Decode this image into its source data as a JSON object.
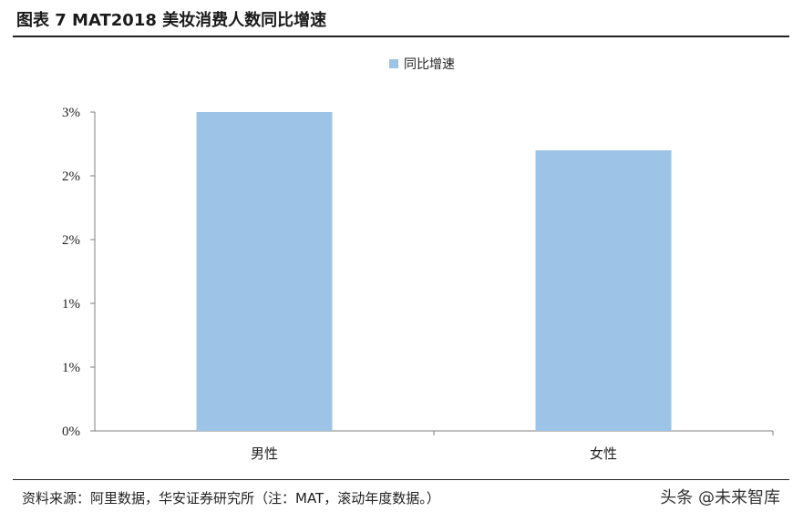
{
  "figure_title": "图表 7 MAT2018 美妆消费人数同比增速",
  "source_note": "资料来源：阿里数据，华安证券研究所（注：MAT，滚动年度数据。）",
  "watermark": "头条 @未来智库",
  "colors": {
    "bar": "#9dc3e6",
    "axis": "#7f7f7f",
    "text": "#222222"
  },
  "chart_data": {
    "type": "bar",
    "title": "",
    "xlabel": "",
    "ylabel": "",
    "categories": [
      "男性",
      "女性"
    ],
    "series": [
      {
        "name": "同比增速",
        "values": [
          2.6,
          2.2
        ]
      }
    ],
    "ylim": [
      0,
      2.5
    ],
    "yticks": [
      {
        "value": 0,
        "label": "0%"
      },
      {
        "value": 0.5,
        "label": "1%"
      },
      {
        "value": 1.0,
        "label": "1%"
      },
      {
        "value": 1.5,
        "label": "2%"
      },
      {
        "value": 2.0,
        "label": "2%"
      },
      {
        "value": 2.5,
        "label": "3%"
      }
    ],
    "grid": false,
    "legend_position": "top-center"
  }
}
